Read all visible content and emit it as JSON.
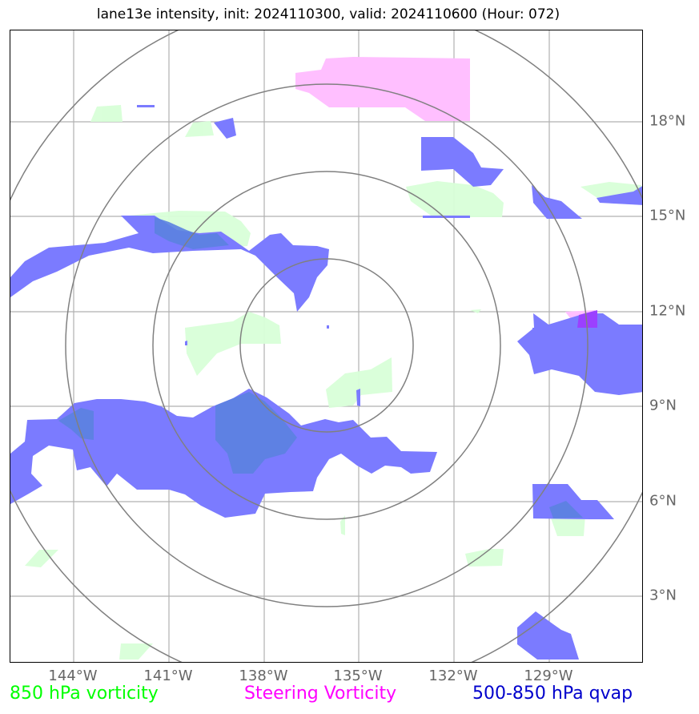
{
  "title": "lane13e intensity, init: 2024110300, valid: 2024110600 (Hour: 072)",
  "legend": [
    {
      "label": "850 hPa vorticity",
      "color": "#00ff00"
    },
    {
      "label": "Steering Vorticity",
      "color": "#ff00ff"
    },
    {
      "label": "500-850 hPa qvap",
      "color": "#0000cc"
    }
  ],
  "longitude_labels": [
    "144°W",
    "141°W",
    "138°W",
    "135°W",
    "132°W",
    "129°W"
  ],
  "latitude_labels": [
    "18°N",
    "15°N",
    "12°N",
    "9°N",
    "6°N",
    "3°N"
  ],
  "colors": {
    "vorticity_fill": "#d8ffd8",
    "steering_fill": "#ffbfff",
    "qvap_fill": "#7b7bff",
    "overlap_fill": "#5b82e0",
    "range_rings": "#808080",
    "gridlines": "#b0b0b0",
    "tick_labels": "#666666"
  },
  "map": {
    "range_rings": 4,
    "gridlines": true
  }
}
